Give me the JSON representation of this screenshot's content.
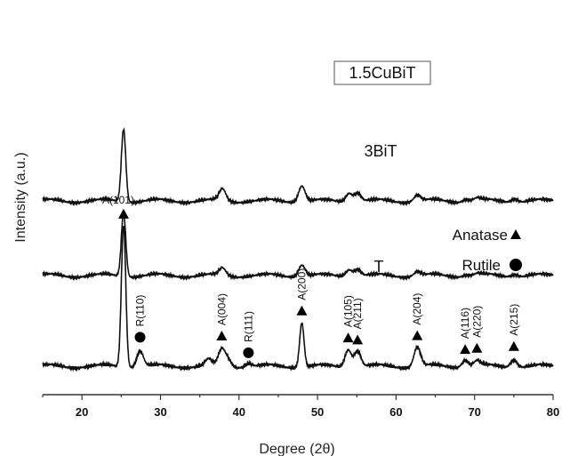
{
  "chart_data": {
    "type": "line",
    "xlabel": "Degree (2θ)",
    "ylabel": "Intensity (a.u.)",
    "xlim": [
      15,
      80
    ],
    "xticks": [
      20,
      30,
      40,
      50,
      60,
      70,
      80
    ],
    "y_ticks_shown": false,
    "grid": false,
    "series": [
      {
        "name": "1.5CuBiT",
        "baseline": 102,
        "noise": 1.5,
        "peaks": [
          [
            25.3,
            72
          ],
          [
            37.9,
            8
          ],
          [
            48.0,
            13
          ],
          [
            54.0,
            8
          ],
          [
            55.1,
            8
          ],
          [
            62.7,
            5
          ],
          [
            68.9,
            2
          ],
          [
            70.3,
            2
          ],
          [
            75.1,
            3
          ]
        ]
      },
      {
        "name": "3BiT",
        "baseline": 186,
        "noise": 1.5,
        "peaks": [
          [
            25.3,
            82
          ],
          [
            37.9,
            13
          ],
          [
            48.0,
            18
          ],
          [
            54.0,
            10
          ],
          [
            55.1,
            10
          ],
          [
            62.7,
            7
          ],
          [
            68.9,
            3
          ],
          [
            70.3,
            3
          ],
          [
            75.1,
            4
          ]
        ]
      },
      {
        "name": "T",
        "baseline": 0,
        "noise": 1.8,
        "peaks": [
          [
            25.3,
            160
          ],
          [
            27.4,
            18
          ],
          [
            36.1,
            7
          ],
          [
            37.8,
            18
          ],
          [
            38.6,
            8
          ],
          [
            41.2,
            4
          ],
          [
            48.0,
            50
          ],
          [
            53.9,
            20
          ],
          [
            55.1,
            18
          ],
          [
            62.7,
            22
          ],
          [
            68.8,
            8
          ],
          [
            70.3,
            6
          ],
          [
            75.0,
            9
          ]
        ]
      }
    ],
    "peak_annotations": [
      {
        "label": "A(101)",
        "x": 25.3,
        "marker": "triangle"
      },
      {
        "label": "R(110)",
        "x": 27.4,
        "marker": "circle"
      },
      {
        "label": "A(004)",
        "x": 37.8,
        "marker": "triangle"
      },
      {
        "label": "R(111)",
        "x": 41.2,
        "marker": "circle"
      },
      {
        "label": "A(200)",
        "x": 48.0,
        "marker": "triangle"
      },
      {
        "label": "A(105)",
        "x": 53.9,
        "marker": "triangle"
      },
      {
        "label": "A(211)",
        "x": 55.1,
        "marker": "triangle"
      },
      {
        "label": "A(204)",
        "x": 62.7,
        "marker": "triangle"
      },
      {
        "label": "A(116)",
        "x": 68.8,
        "marker": "triangle"
      },
      {
        "label": "A(220)",
        "x": 70.3,
        "marker": "triangle"
      },
      {
        "label": "A(215)",
        "x": 75.0,
        "marker": "triangle"
      }
    ],
    "sample_labels": [
      {
        "text": "1.5CuBiT",
        "boxed": true
      },
      {
        "text": "3BiT",
        "boxed": false
      },
      {
        "text": "T",
        "boxed": false
      }
    ],
    "legend": [
      {
        "label": "Anatase",
        "marker": "triangle"
      },
      {
        "label": "Rutile",
        "marker": "circle"
      }
    ],
    "colors": {
      "lines": "#111111",
      "axis": "#333333",
      "markers": "#000000"
    }
  }
}
